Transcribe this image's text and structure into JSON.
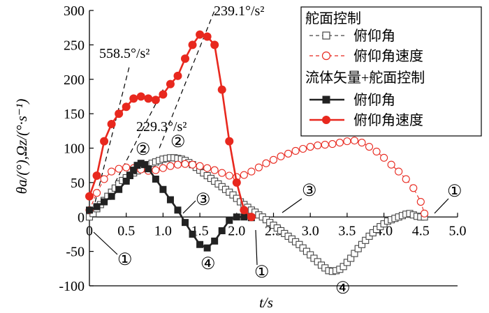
{
  "chart_data": {
    "type": "line",
    "xlabel": "t/s",
    "ylabel": "θa/(°),Ωz/(°·s⁻¹)",
    "xlim": [
      0,
      5
    ],
    "ylim": [
      -100,
      300
    ],
    "xticks": [
      0,
      0.5,
      1.0,
      1.5,
      2.0,
      2.5,
      3.0,
      3.5,
      4.0,
      4.5,
      5.0
    ],
    "xtick_labels": [
      "0",
      "0.5",
      "1.0",
      "1.5",
      "2.0",
      "2.5",
      "3.0",
      "3.5",
      "4.0",
      "4.5",
      "5.0"
    ],
    "yticks": [
      -100,
      -50,
      0,
      50,
      100,
      150,
      200,
      250,
      300
    ],
    "ytick_labels": [
      "-100",
      "-50",
      "0",
      "50",
      "100",
      "150",
      "200",
      "250",
      "300"
    ],
    "legend": {
      "placement": "top-right",
      "group1_title": "舵面控制",
      "group2_title": "流体矢量+舵面控制",
      "entries": [
        "俯仰角",
        "俯仰角速度",
        "俯仰角",
        "俯仰角速度"
      ]
    },
    "colors": {
      "black": "#222222",
      "red": "#e8281e",
      "axis": "#000000"
    },
    "series": [
      {
        "name": "俯仰角",
        "group": "舵面控制",
        "style": "dashed-open-square",
        "color": "#444444",
        "x": [
          0,
          0.05,
          0.1,
          0.15,
          0.2,
          0.25,
          0.3,
          0.35,
          0.4,
          0.45,
          0.5,
          0.55,
          0.6,
          0.65,
          0.7,
          0.75,
          0.8,
          0.85,
          0.9,
          0.95,
          1.0,
          1.05,
          1.1,
          1.15,
          1.2,
          1.25,
          1.3,
          1.35,
          1.4,
          1.45,
          1.5,
          1.55,
          1.6,
          1.65,
          1.7,
          1.75,
          1.8,
          1.85,
          1.9,
          1.95,
          2.0,
          2.05,
          2.1,
          2.15,
          2.2,
          2.25,
          2.3,
          2.35,
          2.4,
          2.45,
          2.5,
          2.55,
          2.6,
          2.65,
          2.7,
          2.75,
          2.8,
          2.85,
          2.9,
          2.95,
          3.0,
          3.05,
          3.1,
          3.15,
          3.2,
          3.25,
          3.3,
          3.35,
          3.4,
          3.45,
          3.5,
          3.55,
          3.6,
          3.65,
          3.7,
          3.75,
          3.8,
          3.85,
          3.9,
          3.95,
          4.0,
          4.05,
          4.1,
          4.15,
          4.2,
          4.25,
          4.3,
          4.35,
          4.4,
          4.45,
          4.5,
          4.55
        ],
        "y": [
          0,
          5,
          12,
          18,
          24,
          30,
          36,
          42,
          48,
          53,
          57,
          61,
          64,
          67,
          70,
          73,
          76,
          78,
          80,
          82,
          84,
          85,
          86,
          86,
          85,
          84,
          82,
          79,
          76,
          72,
          68,
          64,
          60,
          56,
          52,
          48,
          44,
          40,
          36,
          32,
          27,
          22,
          18,
          14,
          10,
          7,
          3,
          0,
          -4,
          -8,
          -12,
          -16,
          -20,
          -24,
          -28,
          -32,
          -36,
          -40,
          -45,
          -50,
          -55,
          -60,
          -65,
          -70,
          -74,
          -78,
          -79,
          -78,
          -76,
          -72,
          -66,
          -60,
          -53,
          -46,
          -40,
          -34,
          -28,
          -23,
          -18,
          -14,
          -10,
          -6,
          -4,
          -2,
          0,
          2,
          4,
          5,
          3,
          1,
          0,
          0
        ]
      },
      {
        "name": "俯仰角速度",
        "group": "舵面控制",
        "style": "dashed-open-circle",
        "color": "#e8281e",
        "x": [
          0,
          0.1,
          0.2,
          0.3,
          0.4,
          0.5,
          0.6,
          0.7,
          0.8,
          0.9,
          1.0,
          1.1,
          1.2,
          1.3,
          1.4,
          1.5,
          1.6,
          1.7,
          1.8,
          1.9,
          2.0,
          2.1,
          2.2,
          2.3,
          2.4,
          2.5,
          2.6,
          2.7,
          2.8,
          2.9,
          3.0,
          3.1,
          3.2,
          3.3,
          3.4,
          3.5,
          3.6,
          3.7,
          3.8,
          3.9,
          4.0,
          4.1,
          4.2,
          4.3,
          4.4,
          4.5,
          4.55
        ],
        "y": [
          10,
          35,
          55,
          66,
          70,
          72,
          71,
          69,
          67,
          68,
          71,
          74,
          76,
          77,
          76,
          74,
          71,
          68,
          64,
          60,
          58,
          61,
          66,
          72,
          78,
          83,
          88,
          92,
          96,
          99,
          102,
          104,
          105,
          106,
          108,
          110,
          111,
          108,
          102,
          95,
          86,
          76,
          66,
          55,
          42,
          22,
          5
        ]
      },
      {
        "name": "俯仰角",
        "group": "流体矢量+舵面控制",
        "style": "solid-filled-square",
        "color": "#222222",
        "x": [
          0,
          0.1,
          0.2,
          0.3,
          0.4,
          0.5,
          0.55,
          0.6,
          0.65,
          0.7,
          0.75,
          0.8,
          0.9,
          1.0,
          1.1,
          1.2,
          1.3,
          1.4,
          1.5,
          1.6,
          1.7,
          1.8,
          1.9,
          2.0,
          2.1,
          2.2
        ],
        "y": [
          10,
          15,
          22,
          30,
          40,
          52,
          60,
          68,
          75,
          78,
          76,
          70,
          55,
          40,
          25,
          10,
          -8,
          -25,
          -40,
          -45,
          -35,
          -20,
          -5,
          0,
          0,
          -1
        ]
      },
      {
        "name": "俯仰角速度",
        "group": "流体矢量+舵面控制",
        "style": "solid-filled-circle",
        "color": "#e8281e",
        "x": [
          0,
          0.1,
          0.2,
          0.3,
          0.4,
          0.5,
          0.6,
          0.7,
          0.8,
          0.9,
          1.0,
          1.1,
          1.2,
          1.3,
          1.4,
          1.5,
          1.6,
          1.7,
          1.8,
          1.9,
          2.0,
          2.1,
          2.2
        ],
        "y": [
          30,
          60,
          110,
          135,
          150,
          160,
          172,
          175,
          172,
          170,
          178,
          193,
          205,
          230,
          250,
          265,
          262,
          250,
          185,
          110,
          50,
          10,
          0
        ]
      }
    ],
    "annotations": [
      {
        "text": "558.5°/s²",
        "kind": "slope-label"
      },
      {
        "text": "239.1°/s²",
        "kind": "slope-label"
      },
      {
        "text": "229.3°/s²",
        "kind": "slope-label"
      },
      {
        "text": "①",
        "kind": "marker"
      },
      {
        "text": "②",
        "kind": "marker"
      },
      {
        "text": "③",
        "kind": "marker"
      },
      {
        "text": "④",
        "kind": "marker"
      }
    ],
    "slope_lines": [
      {
        "label": "558.5°/s²",
        "from": [
          0.05,
          10
        ],
        "to": [
          0.55,
          222
        ]
      },
      {
        "label": "239.1°/s²",
        "from": [
          0.95,
          100
        ],
        "to": [
          1.7,
          300
        ]
      },
      {
        "label": "229.3°/s²",
        "from": [
          0.35,
          50
        ],
        "to": [
          1.0,
          185
        ]
      }
    ]
  }
}
